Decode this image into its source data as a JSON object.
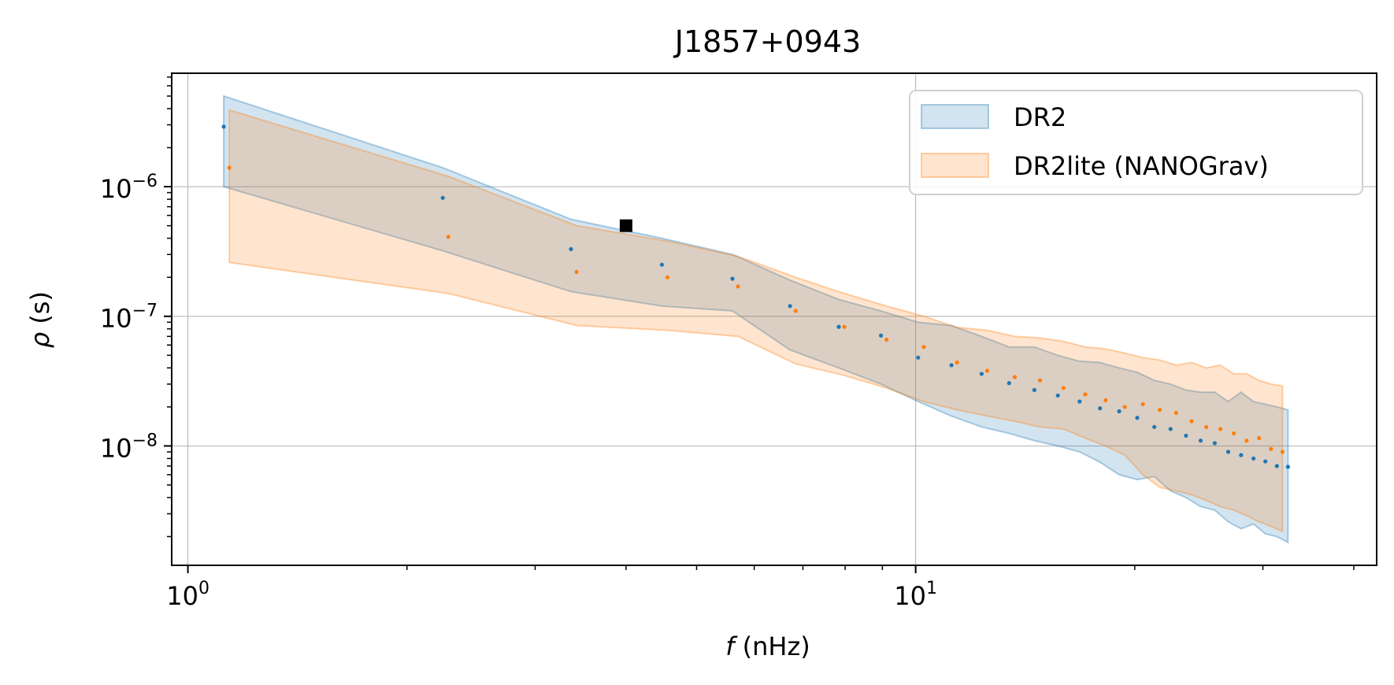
{
  "chart_data": {
    "type": "area",
    "title": "J1857+0943",
    "xlabel_italic": "f",
    "xlabel_unit": " (nHz)",
    "ylabel_italic": "ρ",
    "ylabel_unit": " (s)",
    "xscale": "log",
    "yscale": "log",
    "xlim": [
      0.95,
      43
    ],
    "ylim": [
      1.2e-09,
      7.5e-06
    ],
    "grid": true,
    "legend_position": "top-right",
    "x_ticks": [
      {
        "value": 1,
        "base": "10",
        "exp": "0"
      },
      {
        "value": 10,
        "base": "10",
        "exp": "1"
      }
    ],
    "y_ticks": [
      {
        "value": 1e-08,
        "base": "10",
        "exp": "−8"
      },
      {
        "value": 1e-07,
        "base": "10",
        "exp": "−7"
      },
      {
        "value": 1e-06,
        "base": "10",
        "exp": "−6"
      }
    ],
    "series": [
      {
        "name": "DR2",
        "color": "#1f77b4",
        "fill": "#1f77b4",
        "fill_opacity": 0.2,
        "band_x": [
          1.12,
          2.24,
          3.36,
          4.48,
          5.6,
          6.72,
          7.84,
          8.96,
          10.08,
          11.2,
          12.32,
          13.44,
          14.56,
          15.68,
          16.8,
          17.92,
          19.04,
          20.16,
          21.28,
          22.4,
          23.52,
          24.64,
          25.76,
          26.88,
          28.0,
          29.12,
          30.24,
          31.36,
          32.48
        ],
        "band_upper": [
          5e-06,
          1.4e-06,
          5.6e-07,
          4e-07,
          3e-07,
          1.9e-07,
          1.35e-07,
          1.1e-07,
          9e-08,
          8.5e-08,
          7e-08,
          5.8e-08,
          5.8e-08,
          5e-08,
          4.5e-08,
          4.4e-08,
          4e-08,
          3.7e-08,
          3.2e-08,
          3e-08,
          2.7e-08,
          2.6e-08,
          2.6e-08,
          2.2e-08,
          2.6e-08,
          2.2e-08,
          2.1e-08,
          2e-08,
          1.9e-08
        ],
        "band_lower": [
          1e-06,
          3.2e-07,
          1.55e-07,
          1.2e-07,
          1.1e-07,
          5.5e-08,
          4e-08,
          3e-08,
          2.2e-08,
          1.7e-08,
          1.4e-08,
          1.25e-08,
          1.1e-08,
          1e-08,
          9e-09,
          7.5e-09,
          6e-09,
          5.5e-09,
          5.8e-09,
          4.5e-09,
          4e-09,
          3.4e-09,
          3.2e-09,
          2.6e-09,
          2.3e-09,
          2.5e-09,
          2.1e-09,
          2e-09,
          1.8e-09
        ],
        "points_x": [
          1.12,
          2.24,
          3.36,
          4.48,
          5.6,
          6.72,
          7.84,
          8.96,
          10.08,
          11.2,
          12.32,
          13.44,
          14.56,
          15.68,
          16.8,
          17.92,
          19.04,
          20.16,
          21.28,
          22.4,
          23.52,
          24.64,
          25.76,
          26.88,
          28.0,
          29.12,
          30.24,
          31.36,
          32.48
        ],
        "points_y": [
          2.9e-06,
          8.2e-07,
          3.3e-07,
          2.5e-07,
          1.95e-07,
          1.2e-07,
          8.3e-08,
          7.1e-08,
          4.8e-08,
          4.2e-08,
          3.6e-08,
          3.05e-08,
          2.7e-08,
          2.45e-08,
          2.2e-08,
          1.95e-08,
          1.85e-08,
          1.65e-08,
          1.4e-08,
          1.35e-08,
          1.2e-08,
          1.1e-08,
          1.05e-08,
          9e-09,
          8.5e-09,
          8e-09,
          7.6e-09,
          7e-09,
          6.9e-09
        ]
      },
      {
        "name": "DR2lite (NANOGrav)",
        "color": "#ff7f0e",
        "fill": "#ff7f0e",
        "fill_opacity": 0.2,
        "band_x": [
          1.14,
          2.28,
          3.42,
          4.56,
          5.7,
          6.84,
          7.98,
          9.12,
          10.26,
          11.4,
          12.54,
          13.68,
          14.82,
          15.96,
          17.1,
          18.24,
          19.38,
          20.52,
          21.66,
          22.8,
          23.94,
          25.08,
          26.22,
          27.36,
          28.5,
          29.64,
          30.78,
          31.92
        ],
        "band_upper": [
          3.9e-06,
          1.2e-06,
          5e-07,
          3.8e-07,
          2.9e-07,
          2e-07,
          1.5e-07,
          1.2e-07,
          1e-07,
          8.2e-08,
          7.8e-08,
          7e-08,
          6.8e-08,
          6.4e-08,
          5.8e-08,
          5.6e-08,
          5.2e-08,
          4.8e-08,
          4.6e-08,
          4.2e-08,
          4.4e-08,
          4e-08,
          4.2e-08,
          3.6e-08,
          3.6e-08,
          3.2e-08,
          3e-08,
          2.9e-08
        ],
        "band_lower": [
          2.6e-07,
          1.5e-07,
          8.5e-08,
          7.8e-08,
          7e-08,
          4.3e-08,
          3.5e-08,
          2.8e-08,
          2.2e-08,
          1.9e-08,
          1.7e-08,
          1.55e-08,
          1.4e-08,
          1.35e-08,
          1.15e-08,
          1e-08,
          8.5e-09,
          6e-09,
          4.8e-09,
          4.5e-09,
          4.2e-09,
          3.8e-09,
          3.4e-09,
          3.2e-09,
          2.9e-09,
          2.6e-09,
          2.4e-09,
          2.2e-09
        ],
        "points_x": [
          1.14,
          2.28,
          3.42,
          4.56,
          5.7,
          6.84,
          7.98,
          9.12,
          10.26,
          11.4,
          12.54,
          13.68,
          14.82,
          15.96,
          17.1,
          18.24,
          19.38,
          20.52,
          21.66,
          22.8,
          23.94,
          25.08,
          26.22,
          27.36,
          28.5,
          29.64,
          30.78,
          31.92
        ],
        "points_y": [
          1.4e-06,
          4.1e-07,
          2.2e-07,
          2e-07,
          1.7e-07,
          1.1e-07,
          8.3e-08,
          6.6e-08,
          5.8e-08,
          4.4e-08,
          3.8e-08,
          3.4e-08,
          3.2e-08,
          2.8e-08,
          2.5e-08,
          2.25e-08,
          2e-08,
          2.1e-08,
          1.9e-08,
          1.8e-08,
          1.55e-08,
          1.4e-08,
          1.35e-08,
          1.25e-08,
          1.1e-08,
          1.15e-08,
          9.5e-09,
          9e-09
        ]
      }
    ],
    "marker": {
      "x": 4.0,
      "y": 5e-07,
      "color": "#000000",
      "shape": "square"
    }
  }
}
